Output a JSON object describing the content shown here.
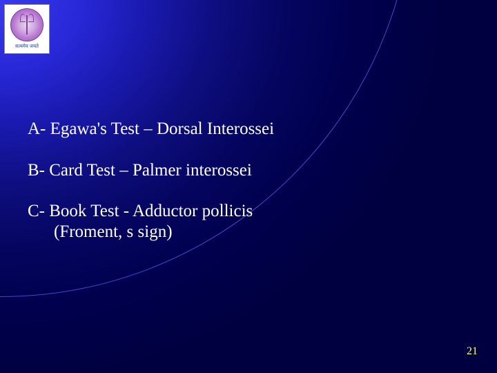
{
  "logo": {
    "caption": "सत्यमेव जयते"
  },
  "content": {
    "items": [
      {
        "line1": "A- Egawa's Test – Dorsal Interossei",
        "line2": null
      },
      {
        "line1": "B- Card Test – Palmer interossei",
        "line2": null
      },
      {
        "line1": "C- Book Test  - Adductor pollicis",
        "line2": "(Froment, s sign)"
      }
    ]
  },
  "pageNumber": "21",
  "colors": {
    "text": "#ffffff",
    "pageNum": "#ffff66",
    "bgDark": "#00004d"
  }
}
